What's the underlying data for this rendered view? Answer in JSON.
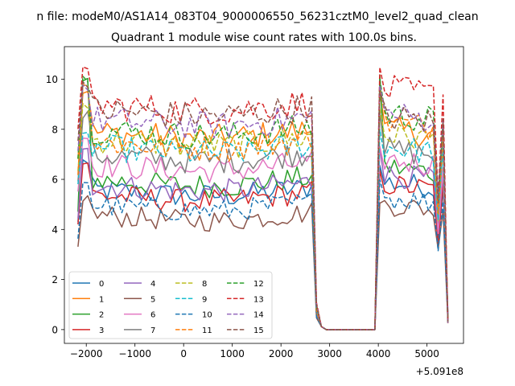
{
  "chart_data": {
    "type": "line",
    "suptitle": "n file: modeM0/AS1A14_083T04_9000006550_56231cztM0_level2_quad_clean",
    "title": "Quadrant 1 module wise count rates with 100.0s bins.",
    "xlabel": "",
    "ylabel": "",
    "offset_text": "+5.091e8",
    "xlim": [
      -2450,
      5750
    ],
    "ylim": [
      -0.55,
      11.3
    ],
    "xticks": [
      -2000,
      -1000,
      0,
      1000,
      2000,
      3000,
      4000,
      5000
    ],
    "xtick_labels": [
      "−2000",
      "−1000",
      "0",
      "1000",
      "2000",
      "3000",
      "4000",
      "5000"
    ],
    "yticks": [
      0,
      2,
      4,
      6,
      8,
      10
    ],
    "ytick_labels": [
      "0",
      "2",
      "4",
      "6",
      "8",
      "10"
    ],
    "grid": false,
    "legend_position": "lower-left",
    "legend_columns": 4,
    "gap": [
      2900,
      4000
    ],
    "series": [
      {
        "name": "0",
        "color": "#1f77b4",
        "dash": "solid",
        "level1": 5.6,
        "level2": 5.9,
        "peak": 6.9
      },
      {
        "name": "1",
        "color": "#ff7f0e",
        "dash": "solid",
        "level1": 7.9,
        "level2": 8.0,
        "peak": 9.6
      },
      {
        "name": "2",
        "color": "#2ca02c",
        "dash": "solid",
        "level1": 6.0,
        "level2": 6.5,
        "peak": 10.3
      },
      {
        "name": "3",
        "color": "#d62728",
        "dash": "solid",
        "level1": 5.4,
        "level2": 5.8,
        "peak": 6.8
      },
      {
        "name": "4",
        "color": "#9467bd",
        "dash": "solid",
        "level1": 5.8,
        "level2": 6.2,
        "peak": 7.3
      },
      {
        "name": "5",
        "color": "#8c564b",
        "dash": "solid",
        "level1": 4.6,
        "level2": 5.0,
        "peak": 5.4
      },
      {
        "name": "6",
        "color": "#e377c2",
        "dash": "solid",
        "level1": 6.6,
        "level2": 6.8,
        "peak": 7.8
      },
      {
        "name": "7",
        "color": "#7f7f7f",
        "dash": "solid",
        "level1": 7.0,
        "level2": 7.2,
        "peak": 8.8
      },
      {
        "name": "8",
        "color": "#bcbd22",
        "dash": "dashed",
        "level1": 7.6,
        "level2": 7.8,
        "peak": 9.1
      },
      {
        "name": "9",
        "color": "#17becf",
        "dash": "dashed",
        "level1": 7.3,
        "level2": 7.3,
        "peak": 8.2
      },
      {
        "name": "10",
        "color": "#1f77b4",
        "dash": "dashed",
        "level1": 5.0,
        "level2": 5.3,
        "peak": 6.0
      },
      {
        "name": "11",
        "color": "#ff7f0e",
        "dash": "dashed",
        "level1": 7.5,
        "level2": 8.3,
        "peak": 9.8
      },
      {
        "name": "12",
        "color": "#2ca02c",
        "dash": "dashed",
        "level1": 8.0,
        "level2": 8.6,
        "peak": 10.2
      },
      {
        "name": "13",
        "color": "#d62728",
        "dash": "dashed",
        "level1": 9.0,
        "level2": 9.6,
        "peak": 10.8
      },
      {
        "name": "14",
        "color": "#9467bd",
        "dash": "dashed",
        "level1": 8.4,
        "level2": 8.6,
        "peak": 9.8
      },
      {
        "name": "15",
        "color": "#8c564b",
        "dash": "dashed",
        "level1": 8.8,
        "level2": 8.5,
        "peak": 9.9
      }
    ]
  }
}
